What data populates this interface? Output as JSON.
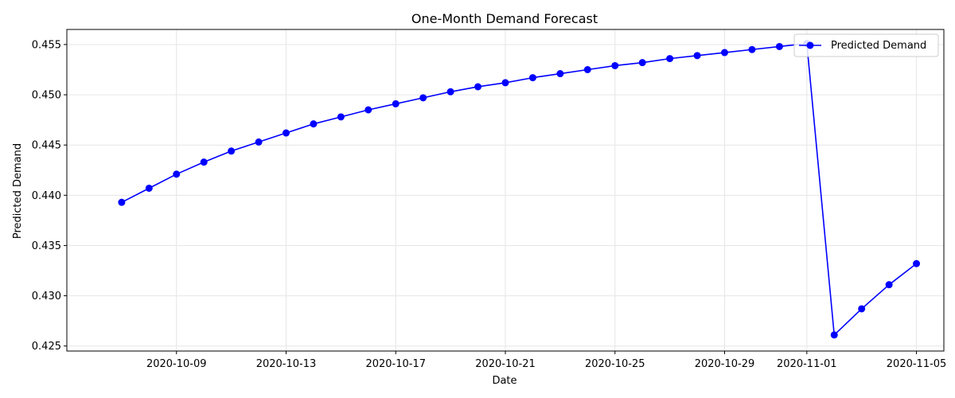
{
  "chart_data": {
    "type": "line",
    "title": "One-Month Demand Forecast",
    "xlabel": "Date",
    "ylabel": "Predicted Demand",
    "ylim": [
      0.4245,
      0.4565
    ],
    "xlim": [
      "2020-10-05",
      "2020-11-06"
    ],
    "grid": true,
    "legend_position": "top-right",
    "x_ticks": [
      "2020-10-09",
      "2020-10-13",
      "2020-10-17",
      "2020-10-21",
      "2020-10-25",
      "2020-10-29",
      "2020-11-01",
      "2020-11-05"
    ],
    "y_ticks": [
      "0.425",
      "0.430",
      "0.435",
      "0.440",
      "0.445",
      "0.450",
      "0.455"
    ],
    "colors": {
      "series": "#0000ff",
      "grid": "#e6e6e6"
    },
    "series": [
      {
        "name": "Predicted Demand",
        "x": [
          "2020-10-07",
          "2020-10-08",
          "2020-10-09",
          "2020-10-10",
          "2020-10-11",
          "2020-10-12",
          "2020-10-13",
          "2020-10-14",
          "2020-10-15",
          "2020-10-16",
          "2020-10-17",
          "2020-10-18",
          "2020-10-19",
          "2020-10-20",
          "2020-10-21",
          "2020-10-22",
          "2020-10-23",
          "2020-10-24",
          "2020-10-25",
          "2020-10-26",
          "2020-10-27",
          "2020-10-28",
          "2020-10-29",
          "2020-10-30",
          "2020-10-31",
          "2020-11-01",
          "2020-11-02",
          "2020-11-03",
          "2020-11-04",
          "2020-11-05"
        ],
        "values": [
          0.4393,
          0.4407,
          0.4421,
          0.4433,
          0.4444,
          0.4453,
          0.4462,
          0.4471,
          0.4478,
          0.4485,
          0.4491,
          0.4497,
          0.4503,
          0.4508,
          0.4512,
          0.4517,
          0.4521,
          0.4525,
          0.4529,
          0.4532,
          0.4536,
          0.4539,
          0.4542,
          0.4545,
          0.4548,
          0.4551,
          0.4261,
          0.4287,
          0.4311,
          0.4332
        ]
      }
    ]
  }
}
